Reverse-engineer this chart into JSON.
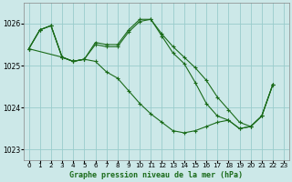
{
  "bg_color": "#cce8e8",
  "grid_color": "#99cccc",
  "line_color": "#1a6b1a",
  "marker_color": "#1a6b1a",
  "xlabel": "Graphe pression niveau de la mer (hPa)",
  "ylim": [
    1022.75,
    1026.5
  ],
  "yticks": [
    1023,
    1024,
    1025,
    1026
  ],
  "xlim": [
    -0.5,
    23.5
  ],
  "xticks": [
    0,
    1,
    2,
    3,
    4,
    5,
    6,
    7,
    8,
    9,
    10,
    11,
    12,
    13,
    14,
    15,
    16,
    17,
    18,
    19,
    20,
    21,
    22,
    23
  ],
  "series": [
    {
      "x": [
        0,
        1,
        2,
        3,
        4,
        5,
        6,
        7,
        8,
        9,
        10,
        11,
        12,
        13,
        14,
        15,
        16,
        17,
        18,
        19,
        20,
        21,
        22
      ],
      "y": [
        1025.4,
        1025.85,
        1025.95,
        1025.2,
        1025.1,
        1025.15,
        1025.55,
        1025.5,
        1025.5,
        1025.85,
        1026.1,
        1026.1,
        1025.75,
        1025.45,
        1025.2,
        1024.95,
        1024.65,
        1024.25,
        1023.95,
        1023.65,
        1023.55,
        1023.8,
        1024.55
      ]
    },
    {
      "x": [
        0,
        1,
        2,
        3,
        4,
        5
      ],
      "y": [
        1025.4,
        1025.85,
        1025.95,
        1025.2,
        1025.1,
        1025.15
      ]
    },
    {
      "x": [
        0,
        3,
        4,
        5,
        6,
        7,
        8,
        9,
        10,
        11,
        12,
        13,
        14,
        15,
        16,
        17,
        18,
        19,
        20,
        21,
        22
      ],
      "y": [
        1025.4,
        1025.2,
        1025.1,
        1025.15,
        1025.5,
        1025.45,
        1025.45,
        1025.8,
        1026.05,
        1026.1,
        1025.7,
        1025.3,
        1025.05,
        1024.6,
        1024.1,
        1023.8,
        1023.7,
        1023.5,
        1023.55,
        1023.8,
        1024.55
      ]
    },
    {
      "x": [
        0,
        1,
        2,
        3,
        4,
        5,
        6,
        7,
        8,
        9,
        10,
        11,
        12,
        13,
        14,
        15,
        16,
        17,
        18,
        19,
        20,
        21,
        22
      ],
      "y": [
        1025.4,
        1025.85,
        1025.95,
        1025.2,
        1025.1,
        1025.15,
        1025.1,
        1024.85,
        1024.7,
        1024.4,
        1024.1,
        1023.85,
        1023.65,
        1023.45,
        1023.4,
        1023.45,
        1023.55,
        1023.65,
        1023.7,
        1023.5,
        1023.55,
        1023.8,
        1024.55
      ]
    }
  ]
}
